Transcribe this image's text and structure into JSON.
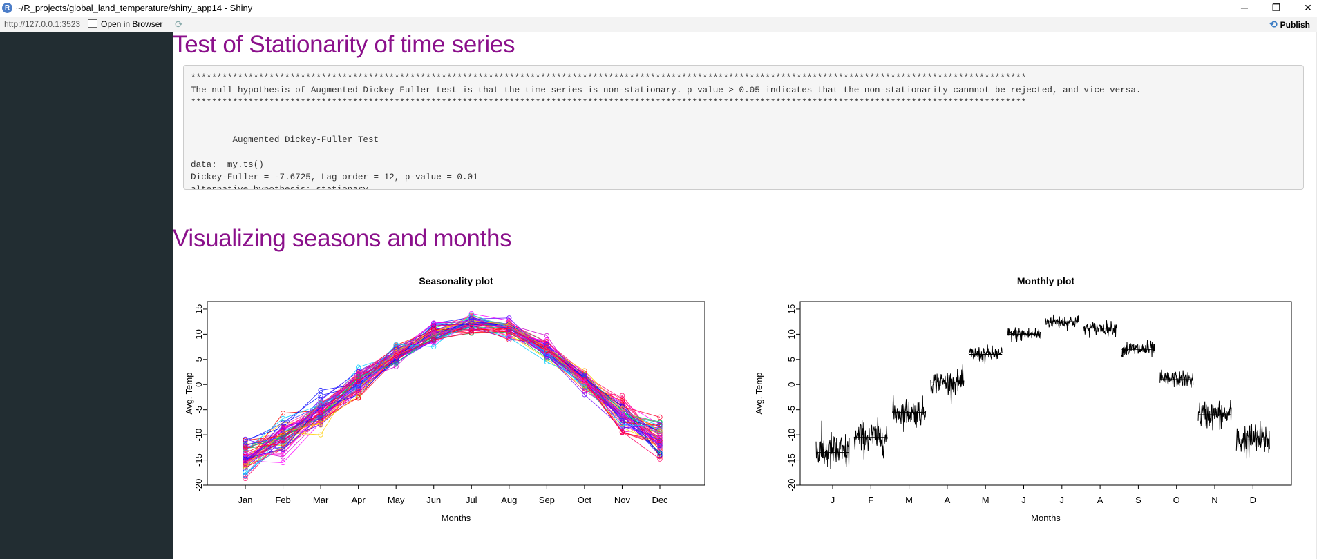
{
  "window": {
    "title": "~/R_projects/global_land_temperature/shiny_app14 - Shiny",
    "icon_letter": "R",
    "minimize": "─",
    "restore": "❐",
    "close": "✕"
  },
  "toolbar": {
    "url": "http://127.0.0.1:3523",
    "open_in_browser": "Open in Browser",
    "refresh_icon": "refresh-icon",
    "publish": "Publish"
  },
  "sections": {
    "stationarity_title": "Test of Stationarity of time series",
    "visualizing_title": "Visualizing seasons and months"
  },
  "adf_output": {
    "lines": [
      "****************************************************************************************************************************************************************",
      "The null hypothesis of Augmented Dickey-Fuller test is that the time series is non-stationary. p value > 0.05 indicates that the non-stationarity cannnot be rejected, and vice versa.",
      "****************************************************************************************************************************************************************",
      "",
      "",
      "\tAugmented Dickey-Fuller Test",
      "",
      "data:  my.ts()",
      "Dickey-Fuller = -7.6725, Lag order = 12, p-value = 0.01",
      "alternative hypothesis: stationary"
    ]
  },
  "colors": {
    "accent_title": "#8b108b",
    "sidebar": "#222d32"
  },
  "chart_data": [
    {
      "type": "line",
      "title": "Seasonality plot",
      "xlabel": "Months",
      "ylabel": "Avg. Temp",
      "categories": [
        "Jan",
        "Feb",
        "Mar",
        "Apr",
        "May",
        "Jun",
        "Jul",
        "Aug",
        "Sep",
        "Oct",
        "Nov",
        "Dec"
      ],
      "yticks": [
        -20,
        -15,
        -10,
        -5,
        0,
        5,
        10,
        15
      ],
      "ylim": [
        -20,
        16.5
      ],
      "mean_profile": [
        -14.5,
        -10.5,
        -5.5,
        0.5,
        5.8,
        10.0,
        12.2,
        11.2,
        7.0,
        0.8,
        -6.0,
        -11.0
      ],
      "min_profile": [
        -19,
        -16,
        -10,
        -4.5,
        3,
        7.5,
        9.5,
        8.5,
        4.5,
        -2,
        -11,
        -17
      ],
      "max_profile": [
        -7,
        -5,
        -1,
        3.8,
        8.5,
        13,
        14.8,
        13.5,
        10.2,
        3.8,
        -1.3,
        -5.2
      ],
      "series_colors": [
        "#ff0000",
        "#0000ff",
        "#00cc66",
        "#ff00ff",
        "#00ccff",
        "#ffcc00",
        "#ff0066",
        "#6600ff",
        "#cc00cc",
        "#3333ff",
        "#ff3399",
        "#ff0033"
      ],
      "grid": false
    },
    {
      "type": "line",
      "title": "Monthly plot",
      "xlabel": "Months",
      "ylabel": "Avg. Temp",
      "categories": [
        "J",
        "F",
        "M",
        "A",
        "M",
        "J",
        "J",
        "A",
        "S",
        "O",
        "N",
        "D"
      ],
      "yticks": [
        -20,
        -15,
        -10,
        -5,
        0,
        5,
        10,
        15
      ],
      "ylim": [
        -20,
        16.5
      ],
      "month_means": [
        -13.5,
        -10.5,
        -5.5,
        0.5,
        6.0,
        10.0,
        12.5,
        11.2,
        7.0,
        1.0,
        -6.0,
        -11.0
      ],
      "month_spread": [
        3.5,
        3.0,
        2.5,
        2.0,
        1.5,
        1.3,
        1.2,
        1.2,
        1.5,
        1.5,
        2.5,
        3.0
      ],
      "grid": false
    }
  ]
}
